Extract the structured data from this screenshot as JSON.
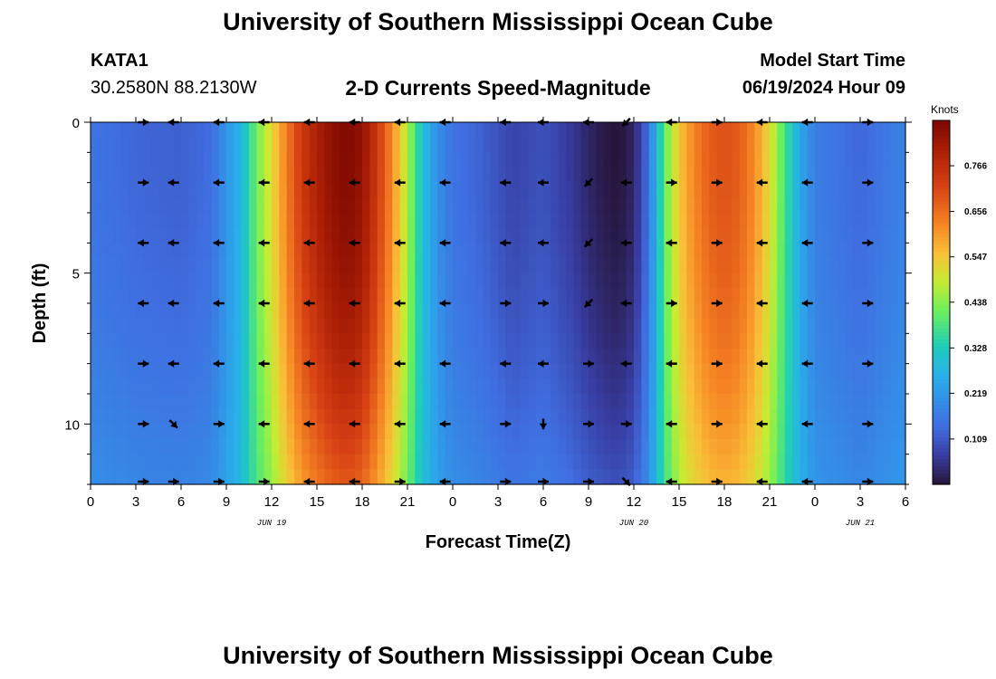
{
  "header": {
    "title": "University of Southern Mississippi Ocean Cube",
    "station": "KATA1",
    "coords": "30.2580N  88.2130W",
    "plot_title": "2-D Currents Speed-Magnitude",
    "model_start_label": "Model Start Time",
    "model_start_value": "06/19/2024 Hour 09"
  },
  "footer": {
    "title": "University of Southern Mississippi Ocean Cube"
  },
  "colorbar": {
    "unit": "Knots",
    "ticks": [
      0.109,
      0.219,
      0.328,
      0.438,
      0.547,
      0.656,
      0.766
    ],
    "range": [
      0,
      0.875
    ]
  },
  "chart_data": {
    "type": "heatmap",
    "xlabel": "Forecast Time(Z)",
    "ylabel": "Depth (ft)",
    "x_tick_labels": [
      "0",
      "3",
      "6",
      "9",
      "12",
      "15",
      "18",
      "21",
      "0",
      "3",
      "6",
      "9",
      "12",
      "15",
      "18",
      "21",
      "0",
      "3",
      "6"
    ],
    "date_labels": [
      {
        "text": "JUN 19",
        "hour": 24
      },
      {
        "text": "JUN 20",
        "hour": 72
      },
      {
        "text": "JUN 21",
        "hour": 102
      }
    ],
    "x_range_hours": [
      0,
      54
    ],
    "y_ticks": [
      0,
      5,
      10
    ],
    "ylim": [
      0,
      12
    ],
    "y_inverted": true,
    "speed_profile_by_hour": [
      [
        0,
        0.15
      ],
      [
        3,
        0.13
      ],
      [
        6,
        0.12
      ],
      [
        8,
        0.14
      ],
      [
        10,
        0.28
      ],
      [
        11,
        0.42
      ],
      [
        12,
        0.52
      ],
      [
        13,
        0.64
      ],
      [
        14,
        0.74
      ],
      [
        15,
        0.8
      ],
      [
        16,
        0.85
      ],
      [
        17,
        0.87
      ],
      [
        18,
        0.84
      ],
      [
        19,
        0.74
      ],
      [
        20,
        0.62
      ],
      [
        21,
        0.47
      ],
      [
        22,
        0.3
      ],
      [
        23,
        0.2
      ],
      [
        24,
        0.15
      ],
      [
        26,
        0.12
      ],
      [
        28,
        0.08
      ],
      [
        30,
        0.1
      ],
      [
        32,
        0.06
      ],
      [
        33,
        0.03
      ],
      [
        34,
        0.01
      ],
      [
        35,
        0.0
      ],
      [
        36,
        0.03
      ],
      [
        37,
        0.15
      ],
      [
        38,
        0.4
      ],
      [
        39,
        0.55
      ],
      [
        40,
        0.63
      ],
      [
        41,
        0.68
      ],
      [
        42,
        0.7
      ],
      [
        43,
        0.68
      ],
      [
        44,
        0.62
      ],
      [
        45,
        0.52
      ],
      [
        46,
        0.38
      ],
      [
        47,
        0.25
      ],
      [
        48,
        0.17
      ],
      [
        51,
        0.13
      ],
      [
        54,
        0.18
      ]
    ],
    "depth_levels_ft": [
      0,
      2,
      4,
      6,
      8,
      10,
      12
    ],
    "vector_times_hours": [
      3.5,
      5.5,
      8.5,
      11.5,
      14.5,
      17.5,
      20.5,
      23.5,
      27.5,
      30,
      33,
      35.5,
      38.5,
      41.5,
      44.5,
      47.5,
      51.5
    ],
    "vectors_by_depth": {
      "0": [
        "right",
        "left",
        "left",
        "left",
        "left",
        "left",
        "left",
        "left",
        "left",
        "left",
        "left",
        "down-left",
        "left",
        "right",
        "left",
        "left",
        "right"
      ],
      "2": [
        "right",
        "left",
        "left",
        "left",
        "left",
        "left",
        "left",
        "left",
        "left",
        "left",
        "down-left",
        "left",
        "right",
        "right",
        "left",
        "left",
        "right"
      ],
      "4": [
        "left",
        "left",
        "left",
        "left",
        "left",
        "left",
        "left",
        "left",
        "left",
        "left",
        "down-left",
        "left",
        "left",
        "right",
        "left",
        "left",
        "right"
      ],
      "6": [
        "left",
        "left",
        "left",
        "left",
        "left",
        "left",
        "left",
        "left",
        "right",
        "right",
        "down-left",
        "left",
        "right",
        "right",
        "left",
        "left",
        "right"
      ],
      "8": [
        "right",
        "left",
        "left",
        "left",
        "left",
        "left",
        "left",
        "left",
        "left",
        "left",
        "right",
        "left",
        "left",
        "right",
        "left",
        "left",
        "right"
      ],
      "10": [
        "right",
        "down-right",
        "right",
        "left",
        "left",
        "left",
        "left",
        "left",
        "right",
        "down",
        "right",
        "right",
        "left",
        "right",
        "left",
        "left",
        "right"
      ],
      "12": [
        "right",
        "right",
        "right",
        "right",
        "left",
        "left",
        "right",
        "left",
        "right",
        "right",
        "right",
        "down-right",
        "left",
        "right",
        "left",
        "left",
        "right"
      ]
    }
  }
}
